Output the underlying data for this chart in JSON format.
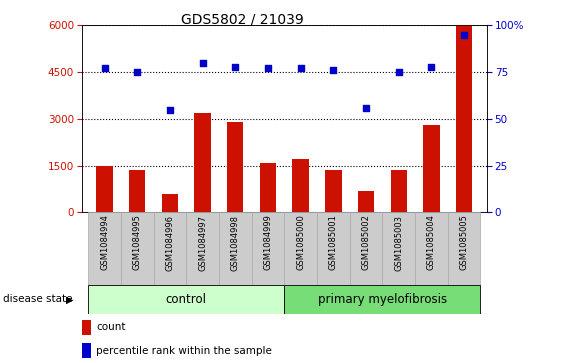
{
  "title": "GDS5802 / 21039",
  "samples": [
    "GSM1084994",
    "GSM1084995",
    "GSM1084996",
    "GSM1084997",
    "GSM1084998",
    "GSM1084999",
    "GSM1085000",
    "GSM1085001",
    "GSM1085002",
    "GSM1085003",
    "GSM1085004",
    "GSM1085005"
  ],
  "counts": [
    1500,
    1350,
    600,
    3200,
    2900,
    1600,
    1700,
    1350,
    700,
    1350,
    2800,
    6000
  ],
  "percentiles": [
    77,
    75,
    55,
    80,
    78,
    77,
    77,
    76,
    56,
    75,
    78,
    95
  ],
  "bar_color": "#cc1100",
  "dot_color": "#0000cc",
  "left_ylim": [
    0,
    6000
  ],
  "left_yticks": [
    0,
    1500,
    3000,
    4500,
    6000
  ],
  "right_ylim": [
    0,
    100
  ],
  "right_yticks": [
    0,
    25,
    50,
    75,
    100
  ],
  "right_yticklabels": [
    "0",
    "25",
    "50",
    "75",
    "100%"
  ],
  "control_samples": 6,
  "control_label": "control",
  "disease_label": "primary myelofibrosis",
  "disease_state_label": "disease state",
  "legend_count_label": "count",
  "legend_percentile_label": "percentile rank within the sample",
  "control_bg": "#ccffcc",
  "disease_bg": "#77dd77",
  "xlabel_bg": "#cccccc",
  "left_tick_color": "#cc1100",
  "right_tick_color": "#0000cc",
  "xlim_left": -0.7,
  "xlim_right": 11.7,
  "bar_width": 0.5
}
